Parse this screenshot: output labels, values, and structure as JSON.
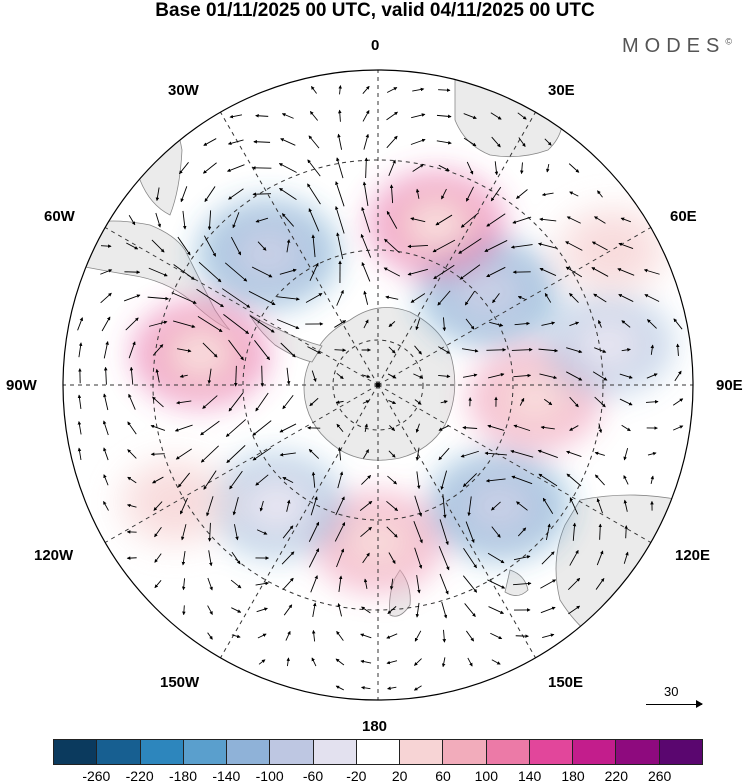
{
  "title": "Base 01/11/2025 00 UTC, valid 04/11/2025 00 UTC",
  "brand": "MODES",
  "brand_mark": "©",
  "longitude_labels": {
    "top": "0",
    "bottom": "180",
    "left": "90W",
    "right": "90E",
    "upper_left_30": "30W",
    "upper_left_60": "60W",
    "upper_right_30": "30E",
    "upper_right_60": "60E",
    "lower_left_120": "120W",
    "lower_left_150": "150W",
    "lower_right_120": "120E",
    "lower_right_150": "150E"
  },
  "reference_vector": {
    "label": "30"
  },
  "colorbar": {
    "colors": [
      "#0b3a5e",
      "#175f91",
      "#2d86bd",
      "#5a9fcd",
      "#8fb2d8",
      "#bec7e2",
      "#e3e1ef",
      "#ffffff",
      "#f7d4d5",
      "#f2acbb",
      "#ec7aa7",
      "#e2469b",
      "#c31d8c",
      "#8e0a7e",
      "#5a066f"
    ],
    "tick_labels": [
      "-260",
      "-220",
      "-180",
      "-140",
      "-100",
      "-60",
      "-20",
      "20",
      "60",
      "100",
      "140",
      "180",
      "220",
      "260"
    ]
  },
  "anomaly_centers": [
    {
      "lon_deg": 0,
      "lat_deg": -55,
      "value": 120
    },
    {
      "lon_deg": 45,
      "lat_deg": -52,
      "value": -180
    },
    {
      "lon_deg": 85,
      "lat_deg": -55,
      "value": 140
    },
    {
      "lon_deg": 130,
      "lat_deg": -58,
      "value": -180
    },
    {
      "lon_deg": 100,
      "lat_deg": -38,
      "value": -120
    },
    {
      "lon_deg": 160,
      "lat_deg": -52,
      "value": 160
    },
    {
      "lon_deg": -140,
      "lat_deg": -52,
      "value": -180
    },
    {
      "lon_deg": -100,
      "lat_deg": -50,
      "value": 160
    },
    {
      "lon_deg": -40,
      "lat_deg": -55,
      "value": -140
    },
    {
      "lon_deg": -60,
      "lat_deg": -38,
      "value": 60
    },
    {
      "lon_deg": 120,
      "lat_deg": -30,
      "value": 60
    }
  ]
}
